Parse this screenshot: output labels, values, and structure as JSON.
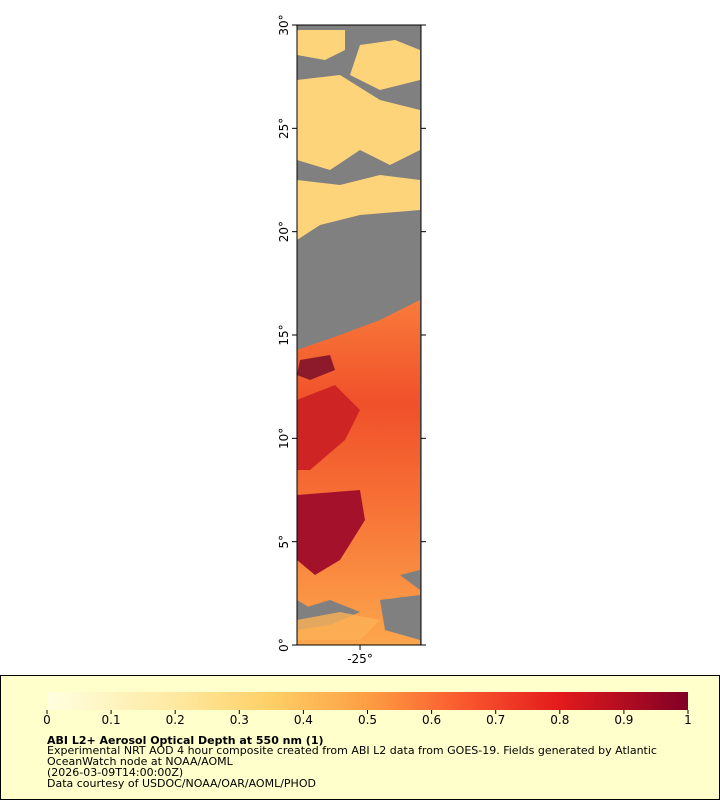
{
  "map": {
    "xlim": [
      -28.05,
      -22.05
    ],
    "ylim": [
      0,
      30
    ],
    "xticks": [
      {
        "value": -25,
        "label": "-25°"
      }
    ],
    "yticks": [
      {
        "value": 0,
        "label": "0°"
      },
      {
        "value": 5,
        "label": "5°"
      },
      {
        "value": 10,
        "label": "10°"
      },
      {
        "value": 15,
        "label": "15°"
      },
      {
        "value": 20,
        "label": "20°"
      },
      {
        "value": 25,
        "label": "25°"
      },
      {
        "value": 30,
        "label": "30°"
      }
    ]
  },
  "legend": {
    "colorbar": {
      "lim": [
        0,
        1
      ],
      "ticks": [
        0,
        0.1,
        0.2,
        0.3,
        0.4,
        0.5,
        0.6,
        0.7,
        0.8,
        0.9,
        1
      ]
    },
    "title": "ABI L2+ Aerosol Optical Depth at 550 nm (1)",
    "lines": [
      "Experimental NRT AOD 4 hour composite created from ABI L2 data from GOES-19. Fields generated by Atlantic",
      "OceanWatch node at NOAA/AOML",
      "(2026-03-09T14:00:00Z)",
      "Data courtesy of USDOC/NOAA/OAR/AOML/PHOD"
    ]
  }
}
